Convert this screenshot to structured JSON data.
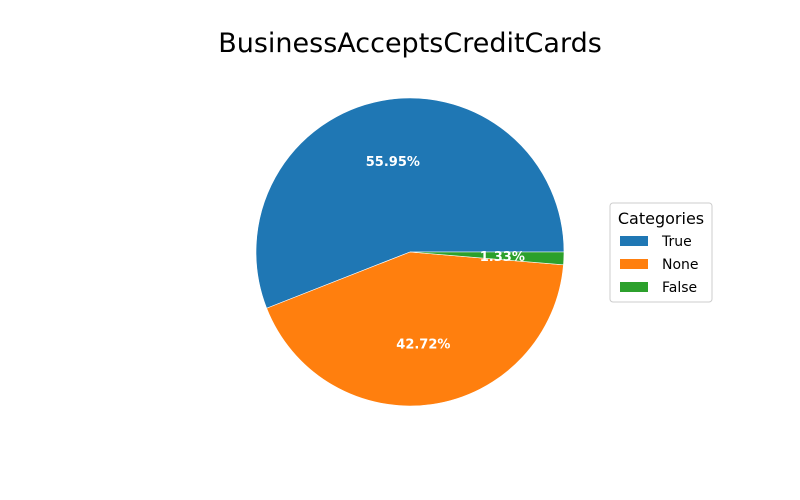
{
  "chart_data": {
    "type": "pie",
    "title": "BusinessAcceptsCreditCards",
    "legend_title": "Categories",
    "legend_position": "right",
    "slices": [
      {
        "label": "True",
        "value": 55.95,
        "pct_label": "55.95%",
        "color": "#1f77b4"
      },
      {
        "label": "None",
        "value": 42.72,
        "pct_label": "42.72%",
        "color": "#ff7f0e"
      },
      {
        "label": "False",
        "value": 1.33,
        "pct_label": "1.33%",
        "color": "#2ca02c"
      }
    ]
  }
}
